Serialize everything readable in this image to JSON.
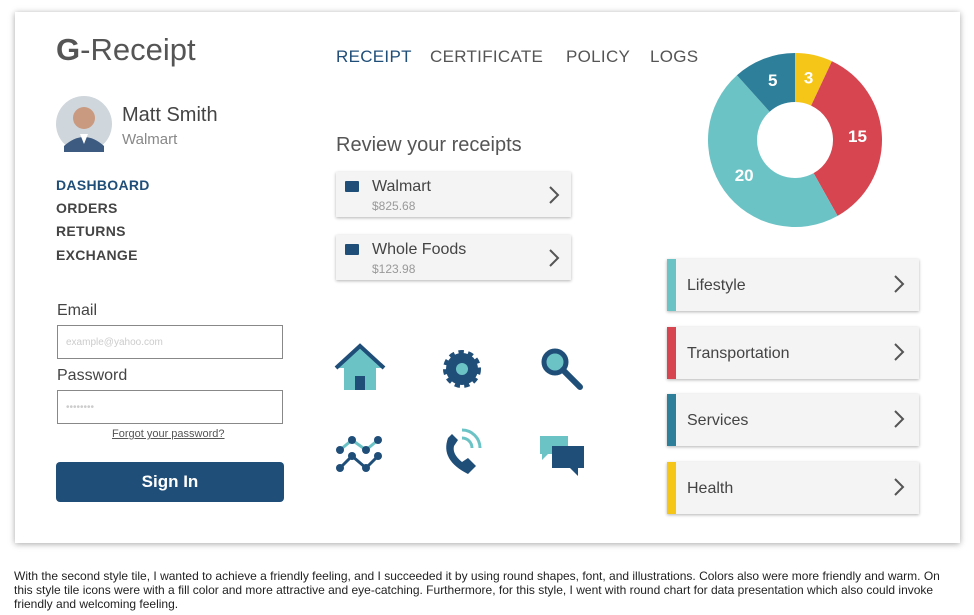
{
  "brand": {
    "mark": "G",
    "text": "-Receipt"
  },
  "nav": [
    "RECEIPT",
    "CERTIFICATE",
    "POLICY",
    "LOGS"
  ],
  "profile": {
    "name": "Matt Smith",
    "company": "Walmart"
  },
  "menu": [
    "DASHBOARD",
    "ORDERS",
    "RETURNS",
    "EXCHANGE"
  ],
  "login": {
    "email_label": "Email",
    "email_placeholder": "example@yahoo.com",
    "password_label": "Password",
    "password_placeholder": "••••••••",
    "forgot": "Forgot your password?",
    "button": "Sign In"
  },
  "receipts": {
    "title": "Review your receipts",
    "items": [
      {
        "store": "Walmart",
        "amount": "$825.68"
      },
      {
        "store": "Whole Foods",
        "amount": "$123.98"
      }
    ]
  },
  "chart_data": {
    "type": "donut",
    "values": [
      3,
      15,
      20,
      5
    ],
    "colors": [
      "#f5c518",
      "#d64550",
      "#6cc3c6",
      "#2e7f9a"
    ]
  },
  "category_list": [
    {
      "label": "Lifestyle",
      "color": "#6cc3c6"
    },
    {
      "label": "Transportation",
      "color": "#d64550"
    },
    {
      "label": "Services",
      "color": "#2e7f9a"
    },
    {
      "label": "Health",
      "color": "#f5c518"
    }
  ],
  "caption": "With the second style tile, I wanted to achieve a friendly feeling, and I succeeded it by using round shapes, font, and illustrations. Colors also were more friendly and warm. On this style tile icons were with a fill color and more attractive and eye-catching. Furthermore, for this style, I went with round chart for data presentation which also could invoke friendly and welcoming feeling."
}
